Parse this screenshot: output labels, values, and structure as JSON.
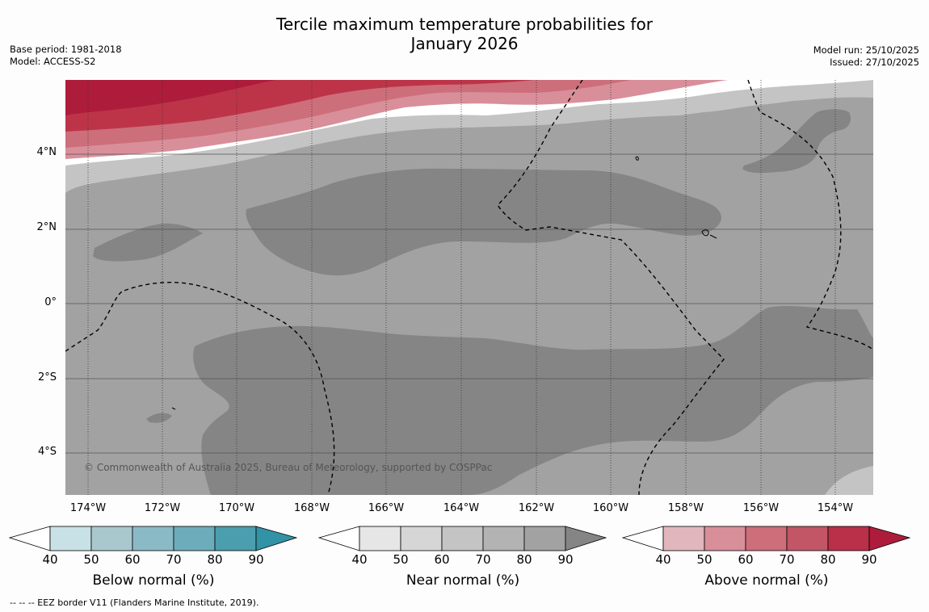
{
  "title": {
    "line1": "Tercile maximum temperature probabilities for",
    "line2": "January 2026"
  },
  "meta_left": {
    "base_period": "Base period: 1981-2018",
    "model": "Model: ACCESS-S2"
  },
  "meta_right": {
    "model_run": "Model run: 25/10/2025",
    "issued": "Issued: 27/10/2025"
  },
  "map": {
    "lat_labels": [
      "4°N",
      "2°N",
      "0°",
      "2°S",
      "4°S"
    ],
    "lon_labels": [
      "174°W",
      "172°W",
      "170°W",
      "168°W",
      "166°W",
      "164°W",
      "162°W",
      "160°W",
      "158°W",
      "156°W",
      "154°W"
    ],
    "copyright": "© Commonwealth of Australia 2025, Bureau of Meteorology, supported by COSPPac",
    "colors": {
      "near_base": "#a2a2a2",
      "near_dark": "#858585",
      "near_light": "#c4c4c4",
      "above_60": "#d88f99",
      "above_70": "#cd6e7b",
      "above_80": "#bd3449",
      "above_90": "#ae1c3c"
    }
  },
  "colorbars": [
    {
      "name": "below",
      "title": "Below normal (%)",
      "ticks": [
        "40",
        "50",
        "60",
        "70",
        "80",
        "90"
      ],
      "colors": [
        "#c8e1e7",
        "#a9c8cd",
        "#8bbac7",
        "#6dadbb",
        "#4a9eae",
        "#3292a6"
      ]
    },
    {
      "name": "near",
      "title": "Near normal (%)",
      "ticks": [
        "40",
        "50",
        "60",
        "70",
        "80",
        "90"
      ],
      "colors": [
        "#e6e6e6",
        "#d6d6d6",
        "#c4c4c4",
        "#b3b3b3",
        "#a2a2a2",
        "#858585"
      ]
    },
    {
      "name": "above",
      "title": "Above normal (%)",
      "ticks": [
        "40",
        "50",
        "60",
        "70",
        "80",
        "90"
      ],
      "colors": [
        "#e2b6bd",
        "#d88f99",
        "#cd6e7b",
        "#c25666",
        "#ba3049",
        "#ae1c3c"
      ]
    }
  ],
  "footnote": "--  --  -- EEZ border V11 (Flanders Marine Institute, 2019)."
}
